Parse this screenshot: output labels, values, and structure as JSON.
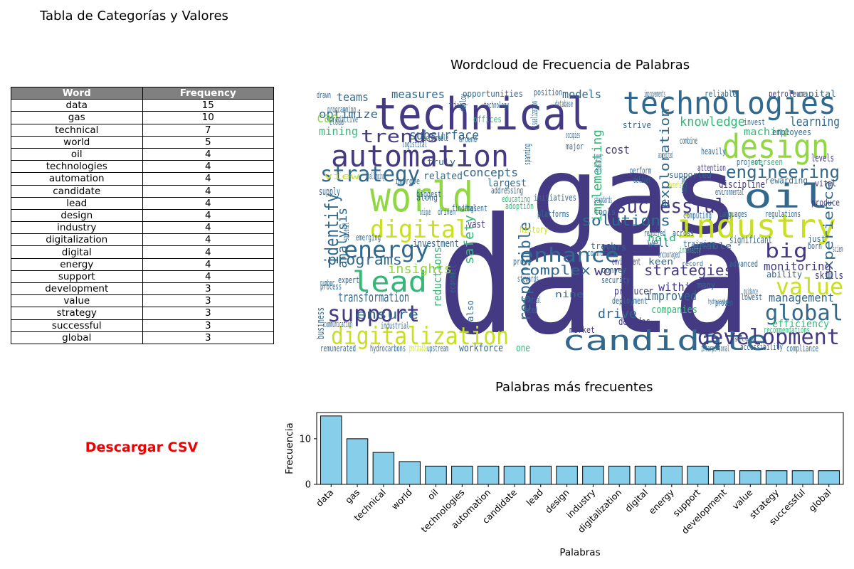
{
  "table": {
    "title": "Tabla de Categorías y Valores",
    "headers": [
      "Word",
      "Frequency"
    ],
    "rows": [
      [
        "data",
        15
      ],
      [
        "gas",
        10
      ],
      [
        "technical",
        7
      ],
      [
        "world",
        5
      ],
      [
        "oil",
        4
      ],
      [
        "technologies",
        4
      ],
      [
        "automation",
        4
      ],
      [
        "candidate",
        4
      ],
      [
        "lead",
        4
      ],
      [
        "design",
        4
      ],
      [
        "industry",
        4
      ],
      [
        "digitalization",
        4
      ],
      [
        "digital",
        4
      ],
      [
        "energy",
        4
      ],
      [
        "support",
        4
      ],
      [
        "development",
        3
      ],
      [
        "value",
        3
      ],
      [
        "strategy",
        3
      ],
      [
        "successful",
        3
      ],
      [
        "global",
        3
      ]
    ]
  },
  "download": {
    "label": "Descargar CSV",
    "color": "#ee0000"
  },
  "wordcloud": {
    "title": "Wordcloud de Frecuencia de Palabras",
    "palette": [
      "#443a83",
      "#31688e",
      "#21918c",
      "#35b779",
      "#90d743",
      "#c8e020"
    ],
    "words": [
      "data",
      "gas",
      "technical",
      "technologies",
      "design",
      "oil",
      "world",
      "automation",
      "industry",
      "digital",
      "candidate",
      "development",
      "digitalization",
      "lead",
      "support",
      "strategy",
      "energy",
      "engineering",
      "successful",
      "enhance",
      "value",
      "global",
      "big",
      "identify",
      "trends",
      "programs",
      "solutions",
      "responsible",
      "implementing",
      "exploration",
      "strategies",
      "work",
      "complex",
      "experience",
      "monitoring",
      "insights",
      "transformation",
      "knowledge",
      "learning",
      "ensure",
      "drive",
      "improved",
      "management",
      "efficiency",
      "optimize",
      "measures",
      "opportunities",
      "models",
      "teams",
      "subsurface",
      "concepts",
      "related",
      "largest",
      "mining",
      "safety",
      "reductions",
      "analysis",
      "cost",
      "within",
      "companies",
      "discipline",
      "machine",
      "employees",
      "skills",
      "ability",
      "well",
      "investment",
      "vast",
      "history",
      "producer",
      "security",
      "decades",
      "market",
      "workforce",
      "one",
      "across",
      "significant",
      "advanced",
      "environment",
      "deployment",
      "can",
      "supply",
      "business",
      "expert",
      "process",
      "emerging",
      "communication",
      "industrial",
      "remunerated",
      "hydrocarbons",
      "upstream",
      "interpersonal",
      "accessibility",
      "compliance",
      "recommendations",
      "levels",
      "vital",
      "produce",
      "regulations",
      "languages",
      "computing",
      "supported",
      "attention",
      "heavily",
      "reliable",
      "petroleum",
      "capital",
      "improvements",
      "invest",
      "project",
      "overseen",
      "rewarding",
      "environmental",
      "initiatives",
      "platforms",
      "standards",
      "tools",
      "years",
      "convey",
      "analytical",
      "faced",
      "nine",
      "stewards",
      "proud",
      "hold",
      "training",
      "encouraged",
      "enable",
      "keen",
      "guidance",
      "lowest",
      "proven",
      "services",
      "science",
      "born",
      "just",
      "many",
      "track",
      "countries",
      "required",
      "addressing",
      "educating",
      "adoption",
      "findings",
      "talent",
      "along",
      "unique",
      "driven",
      "truly",
      "improve",
      "actionable",
      "logistical",
      "cloud",
      "predictive",
      "programming",
      "drawn",
      "five",
      "deploy",
      "around",
      "offices",
      "technology",
      "visualization",
      "position",
      "database",
      "occupies",
      "major",
      "perform",
      "deliver",
      "strive",
      "translating",
      "accredited",
      "combine",
      "view",
      "challenging",
      "biggest",
      "spanning",
      "commitment",
      "benefit",
      "intensity",
      "economic",
      "societal",
      "number",
      "also",
      "profitable",
      "record",
      "hydrocarbon",
      "second"
    ]
  },
  "chart_data": {
    "type": "bar",
    "title": "Palabras más frecuentes",
    "xlabel": "Palabras",
    "ylabel": "Frecuencia",
    "categories": [
      "data",
      "gas",
      "technical",
      "world",
      "oil",
      "technologies",
      "automation",
      "candidate",
      "lead",
      "design",
      "industry",
      "digitalization",
      "digital",
      "energy",
      "support",
      "development",
      "value",
      "strategy",
      "successful",
      "global"
    ],
    "values": [
      15,
      10,
      7,
      5,
      4,
      4,
      4,
      4,
      4,
      4,
      4,
      4,
      4,
      4,
      4,
      3,
      3,
      3,
      3,
      3
    ],
    "ylim": [
      0,
      15.75
    ],
    "yticks": [
      0,
      10
    ],
    "bar_color": "#87ceeb",
    "edge_color": "#000000",
    "grid": false,
    "legend": "none"
  }
}
